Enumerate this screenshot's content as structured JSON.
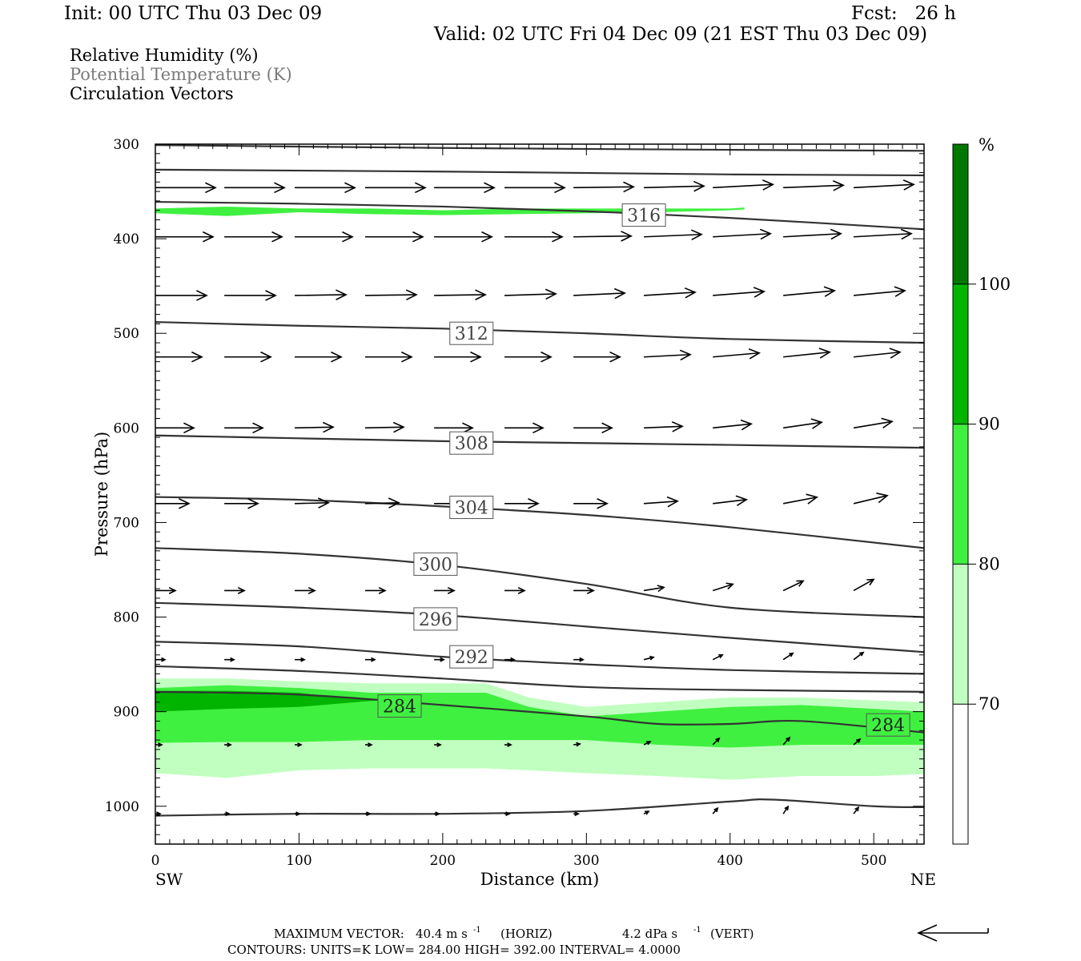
{
  "header": {
    "init": "Init: 00 UTC Thu 03 Dec 09",
    "fcst": "Fcst:   26 h",
    "valid": "Valid: 02 UTC Fri 04 Dec 09 (21 EST Thu 03 Dec 09)"
  },
  "legend": {
    "fields": [
      "Relative Humidity (%)",
      "Potential Temperature (K)",
      "Circulation Vectors"
    ]
  },
  "chart_data": {
    "type": "cross-section",
    "xlabel": "Distance (km)",
    "ylabel": "Pressure (hPa)",
    "xlim": [
      0,
      535
    ],
    "ylim": [
      1040,
      300
    ],
    "x_ticks": [
      0,
      100,
      200,
      300,
      400,
      500
    ],
    "y_ticks": [
      300,
      400,
      500,
      600,
      700,
      800,
      900,
      1000
    ],
    "endpoint_labels": {
      "left": "SW",
      "right": "NE"
    },
    "colorbar": {
      "unit": "%",
      "levels": [
        70,
        80,
        90,
        100
      ],
      "colors": [
        "#ffffff",
        "#c0ffc0",
        "#40f040",
        "#00b400",
        "#007800"
      ]
    },
    "rh_shading": [
      {
        "level": "70-80",
        "color": "#c0ffc0",
        "x": [
          0,
          50,
          100,
          150,
          200,
          230,
          260,
          300,
          350,
          400,
          450,
          500,
          535
        ],
        "top": [
          865,
          865,
          868,
          870,
          870,
          870,
          885,
          895,
          890,
          885,
          885,
          888,
          890
        ],
        "bottom": [
          965,
          970,
          962,
          960,
          960,
          960,
          962,
          965,
          968,
          972,
          968,
          968,
          966
        ]
      },
      {
        "level": "80-90",
        "color": "#40f040",
        "x": [
          0,
          50,
          100,
          150,
          200,
          230,
          260,
          300,
          350,
          400,
          450,
          500,
          535
        ],
        "top": [
          875,
          872,
          875,
          880,
          880,
          880,
          895,
          905,
          900,
          895,
          893,
          897,
          900
        ],
        "bottom": [
          933,
          932,
          932,
          930,
          930,
          930,
          930,
          930,
          935,
          938,
          935,
          935,
          935
        ]
      },
      {
        "level": "90-100",
        "color": "#00b400",
        "x": [
          0,
          50,
          100,
          125,
          155,
          100,
          50,
          0
        ],
        "top": [
          878,
          878,
          880,
          885,
          888,
          895,
          897,
          900
        ],
        "bottom": null
      },
      {
        "level": "80-90",
        "color": "#40f040",
        "x": [
          0,
          50,
          100,
          150,
          200,
          250,
          300,
          350,
          400,
          410
        ],
        "top": [
          368,
          366,
          368,
          368,
          370,
          368,
          368,
          368,
          368,
          367
        ],
        "bottom": [
          373,
          376,
          372,
          374,
          375,
          374,
          373,
          372,
          370,
          369
        ]
      }
    ],
    "theta_contours": [
      {
        "label": "316",
        "x": [
          0,
          100,
          200,
          300,
          400,
          535
        ],
        "p": [
          361,
          363,
          366,
          371,
          378,
          390
        ],
        "label_at": [
          340,
          375
        ]
      },
      {
        "label": "312",
        "x": [
          0,
          100,
          200,
          300,
          400,
          535
        ],
        "p": [
          488,
          492,
          495,
          500,
          506,
          510
        ],
        "label_at": [
          220,
          500
        ]
      },
      {
        "label": "308",
        "x": [
          0,
          100,
          200,
          300,
          400,
          535
        ],
        "p": [
          608,
          611,
          614,
          616,
          618,
          621
        ],
        "label_at": [
          220,
          616
        ]
      },
      {
        "label": "304",
        "x": [
          0,
          100,
          200,
          300,
          400,
          535
        ],
        "p": [
          673,
          676,
          683,
          692,
          705,
          727
        ],
        "label_at": [
          220,
          684
        ]
      },
      {
        "label": "300",
        "x": [
          0,
          100,
          200,
          300,
          400,
          535
        ],
        "p": [
          727,
          733,
          745,
          765,
          790,
          800
        ],
        "label_at": [
          195,
          744
        ]
      },
      {
        "label": "296",
        "x": [
          0,
          100,
          200,
          300,
          400,
          535
        ],
        "p": [
          785,
          790,
          798,
          810,
          822,
          837
        ],
        "label_at": [
          195,
          802
        ]
      },
      {
        "label": "292",
        "x": [
          0,
          100,
          200,
          300,
          400,
          535
        ],
        "p": [
          826,
          831,
          842,
          850,
          856,
          860
        ],
        "label_at": [
          220,
          842
        ]
      },
      {
        "label": "",
        "x": [
          0,
          100,
          200,
          300,
          400,
          535
        ],
        "p": [
          852,
          857,
          865,
          874,
          877,
          879
        ],
        "label_at": null
      },
      {
        "label": "284",
        "x": [
          0,
          100,
          200,
          300,
          350,
          400,
          450,
          535
        ],
        "p": [
          879,
          882,
          893,
          905,
          913,
          913,
          910,
          922
        ],
        "label_at": [
          170,
          894
        ]
      },
      {
        "label": "",
        "x": [
          0,
          100,
          200,
          300,
          400,
          430,
          500,
          535
        ],
        "p": [
          1010,
          1008,
          1008,
          1005,
          995,
          993,
          1000,
          1001
        ],
        "label_at": null
      },
      {
        "label": "",
        "x": [
          0,
          200,
          400,
          535
        ],
        "p": [
          301,
          304,
          306,
          307
        ],
        "label_at": null
      },
      {
        "label": "",
        "x": [
          0,
          200,
          400,
          535
        ],
        "p": [
          327,
          329,
          332,
          333
        ],
        "label_at": null
      }
    ],
    "theta_extra_labels": [
      {
        "label": "284",
        "x": 510,
        "p": 914
      }
    ],
    "vector_rows": [
      {
        "p": 346,
        "x": [
          0,
          48,
          97,
          146,
          194,
          243,
          291,
          340,
          388,
          437,
          486,
          535
        ],
        "len_px": 75,
        "dy": [
          0,
          0,
          0,
          0,
          0,
          0,
          -1,
          -2,
          -4,
          -3,
          -4,
          -4
        ]
      },
      {
        "p": 398,
        "x": [
          0,
          48,
          97,
          146,
          194,
          243,
          291,
          340,
          388,
          437,
          486,
          535
        ],
        "len_px": 72,
        "dy": [
          0,
          0,
          0,
          0,
          0,
          0,
          -1,
          -3,
          -4,
          -4,
          -4,
          -3
        ]
      },
      {
        "p": 460,
        "x": [
          0,
          48,
          97,
          146,
          194,
          243,
          291,
          340,
          388,
          437,
          486,
          535
        ],
        "len_px": 64,
        "dy": [
          0,
          0,
          -1,
          -1,
          -1,
          -2,
          -3,
          -4,
          -5,
          -6,
          -6,
          -6
        ]
      },
      {
        "p": 525,
        "x": [
          0,
          48,
          97,
          146,
          194,
          243,
          291,
          340,
          388,
          437,
          486,
          535
        ],
        "len_px": 58,
        "dy": [
          0,
          0,
          0,
          0,
          0,
          0,
          0,
          -3,
          -5,
          -6,
          -6,
          -6
        ]
      },
      {
        "p": 600,
        "x": [
          0,
          48,
          97,
          146,
          194,
          243,
          291,
          340,
          388,
          437,
          486,
          535
        ],
        "len_px": 48,
        "dy": [
          0,
          0,
          -1,
          -1,
          0,
          0,
          0,
          -2,
          -5,
          -7,
          -8,
          -7
        ]
      },
      {
        "p": 680,
        "x": [
          0,
          48,
          97,
          146,
          194,
          243,
          291,
          340,
          388,
          437,
          486,
          535
        ],
        "len_px": 42,
        "dy": [
          0,
          0,
          -1,
          -1,
          0,
          0,
          0,
          -3,
          -5,
          -8,
          -10,
          -10
        ]
      },
      {
        "p": 772,
        "x": [
          0,
          48,
          97,
          146,
          194,
          243,
          291,
          340,
          388,
          437,
          486,
          535
        ],
        "len_px": 25,
        "dy": [
          0,
          0,
          0,
          0,
          0,
          0,
          0,
          -4,
          -8,
          -12,
          -14,
          -14
        ]
      },
      {
        "p": 845,
        "x": [
          0,
          48,
          97,
          146,
          194,
          243,
          291,
          340,
          388,
          437,
          486,
          535
        ],
        "len_px": 12,
        "dy": [
          0,
          0,
          0,
          0,
          0,
          0,
          0,
          -3,
          -6,
          -8,
          -9,
          -9
        ]
      },
      {
        "p": 935,
        "x": [
          0,
          48,
          97,
          146,
          194,
          243,
          291,
          340,
          388,
          437,
          486,
          535
        ],
        "len_px": 8,
        "dy": [
          0,
          0,
          0,
          0,
          0,
          0,
          -1,
          -4,
          -8,
          -9,
          -7,
          -8
        ]
      },
      {
        "p": 1008,
        "x": [
          0,
          48,
          97,
          146,
          194,
          243,
          291,
          340,
          388,
          437,
          486,
          535
        ],
        "len_px": 6,
        "dy": [
          0,
          0,
          0,
          0,
          0,
          0,
          0,
          -3,
          -7,
          -9,
          -8,
          -7
        ]
      }
    ]
  },
  "footer": {
    "max_vector_label": "MAXIMUM VECTOR:",
    "max_vector_horiz": "40.4 m s",
    "horiz_tag": "(HORIZ)",
    "max_vector_vert": "4.2 dPa s",
    "vert_tag": "(VERT)",
    "exp": "-1",
    "contours": "CONTOURS:  UNITS=K  LOW=   284.00       HIGH=   392.00       INTERVAL=     4.0000"
  },
  "colors": {
    "contour": "#333333",
    "axis": "#000000",
    "label_box_fill": "#ffffff"
  }
}
